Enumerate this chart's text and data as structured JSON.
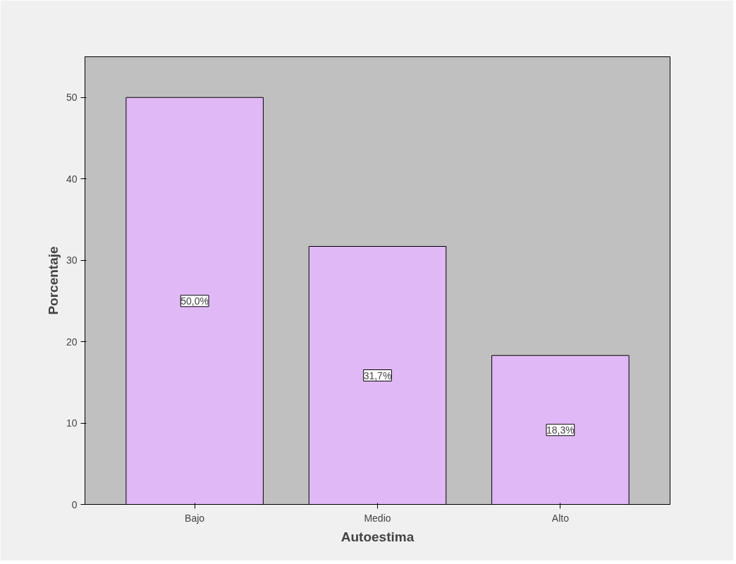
{
  "chart_data": {
    "type": "bar",
    "xlabel": "Autoestima",
    "ylabel": "Porcentaje",
    "categories": [
      "Bajo",
      "Medio",
      "Alto"
    ],
    "values": [
      50.0,
      31.7,
      18.3
    ],
    "value_labels": [
      "50,0%",
      "31,7%",
      "18,3%"
    ],
    "color": "#dfb8f5",
    "ylim": [
      0,
      55
    ],
    "yticks": [
      0,
      10,
      20,
      30,
      40,
      50
    ],
    "grid": false
  }
}
